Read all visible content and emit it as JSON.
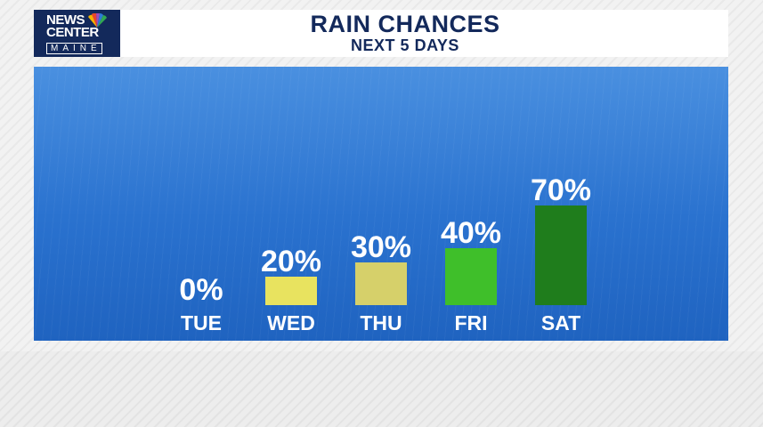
{
  "brand": {
    "line1": "NEWS",
    "line2": "CENTER",
    "line3": "MAINE",
    "icon": "peacock-icon"
  },
  "colors": {
    "header_text": "#13295b",
    "panel": "#2a72cf"
  },
  "chart_data": {
    "type": "bar",
    "title": "RAIN CHANCES",
    "subtitle": "NEXT 5 DAYS",
    "categories": [
      "TUE",
      "WED",
      "THU",
      "FRI",
      "SAT"
    ],
    "values": [
      0,
      20,
      30,
      40,
      70
    ],
    "value_labels": [
      "0%",
      "20%",
      "30%",
      "40%",
      "70%"
    ],
    "colors": [
      "#e8e35f",
      "#e8e35f",
      "#d6d06a",
      "#3fbf2a",
      "#1f7d1c"
    ],
    "ylim": [
      0,
      100
    ],
    "grid": false,
    "legend": "none"
  }
}
